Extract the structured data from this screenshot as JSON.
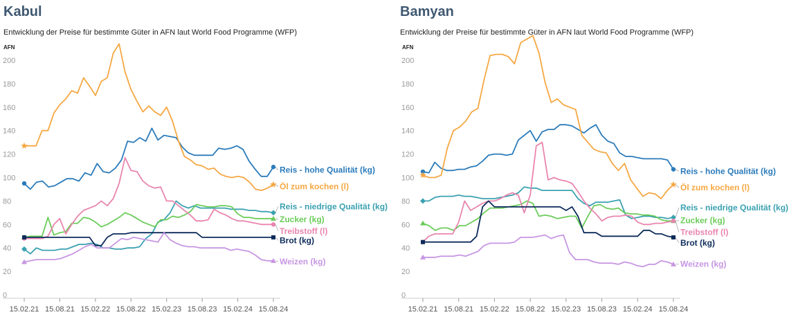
{
  "chart_data": [
    {
      "type": "line",
      "title": "Kabul",
      "subtitle": "Entwicklung der Preise für bestimmte Güter in AFN laut World Food Programme (WFP)",
      "ylabel": "AFN",
      "ylim": [
        0,
        210
      ],
      "yticks": [
        0,
        20,
        40,
        60,
        80,
        100,
        120,
        140,
        160,
        180,
        200
      ],
      "xlim": [
        0,
        42
      ],
      "xticks": [
        {
          "x": 0,
          "label": "15.02.21"
        },
        {
          "x": 6,
          "label": "15.08.21"
        },
        {
          "x": 12,
          "label": "15.02.22"
        },
        {
          "x": 18,
          "label": "15.08.22"
        },
        {
          "x": 24,
          "label": "15.02.23"
        },
        {
          "x": 30,
          "label": "15.08.23"
        },
        {
          "x": 36,
          "label": "15.02.24"
        },
        {
          "x": 42,
          "label": "15.08.24"
        }
      ],
      "grid": "none",
      "series": [
        {
          "name": "Reis - hohe Qualität (kg)",
          "color": "#2b7bba",
          "marker": "circle",
          "label_y": 104,
          "values": [
            95,
            90,
            96,
            97,
            92,
            93,
            96,
            99,
            99,
            97,
            104,
            102,
            112,
            105,
            104,
            108,
            115,
            131,
            130,
            134,
            131,
            142,
            132,
            136,
            135,
            134,
            126,
            121,
            119,
            119,
            119,
            119,
            125,
            124,
            125,
            127,
            124,
            114,
            107,
            101,
            101,
            109
          ]
        },
        {
          "name": "Öl zum kochen (l)",
          "color": "#f5a742",
          "marker": "star",
          "label_y": 90,
          "values": [
            127,
            127,
            127,
            140,
            140,
            155,
            162,
            167,
            174,
            172,
            185,
            178,
            170,
            182,
            185,
            206,
            214,
            190,
            175,
            165,
            156,
            161,
            156,
            153,
            160,
            148,
            131,
            118,
            115,
            111,
            110,
            107,
            108,
            103,
            101,
            100,
            101,
            100,
            96,
            90,
            89,
            91,
            94
          ]
        },
        {
          "name": "Reis - niedrige Qualität (kg)",
          "color": "#3aa1b1",
          "marker": "diamond",
          "label_y": 73,
          "values": [
            39,
            35,
            40,
            38,
            38,
            38,
            39,
            39,
            41,
            43,
            43,
            44,
            43,
            40,
            40,
            39,
            39,
            40,
            40,
            41,
            48,
            52,
            62,
            64,
            70,
            80,
            76,
            74,
            76,
            74,
            74,
            74,
            74,
            74,
            73,
            73,
            73,
            72,
            72,
            71,
            71,
            70
          ]
        },
        {
          "name": "Zucker (kg)",
          "color": "#6bcc5a",
          "marker": "triangle",
          "label_y": 62,
          "values": [
            49,
            50,
            50,
            50,
            66,
            51,
            53,
            54,
            61,
            61,
            66,
            65,
            62,
            58,
            60,
            63,
            66,
            70,
            68,
            65,
            62,
            60,
            58,
            64,
            64,
            67,
            66,
            68,
            71,
            77,
            76,
            75,
            75,
            76,
            76,
            75,
            69,
            66,
            66,
            65,
            65,
            65,
            65
          ]
        },
        {
          "name": "Treibstoff (l)",
          "color": "#e985ae",
          "marker": "circle",
          "label_y": 52,
          "values": [
            48,
            48,
            48,
            48,
            50,
            60,
            65,
            52,
            60,
            67,
            72,
            74,
            76,
            80,
            76,
            82,
            95,
            117,
            106,
            105,
            97,
            93,
            91,
            92,
            80,
            80,
            76,
            72,
            68,
            63,
            63,
            64,
            73,
            70,
            68,
            65,
            63,
            63,
            62,
            61,
            60,
            60,
            60
          ]
        },
        {
          "name": "Brot (kg)",
          "color": "#0d2b5a",
          "marker": "square",
          "label_y": 44,
          "values": [
            49,
            49,
            49,
            49,
            49,
            49,
            49,
            49,
            49,
            49,
            49,
            49,
            42,
            42,
            49,
            52,
            52,
            52,
            53,
            53,
            53,
            53,
            53,
            53,
            53,
            53,
            53,
            53,
            53,
            53,
            49,
            49,
            49,
            49,
            49,
            49,
            49,
            49,
            49,
            49,
            49,
            49,
            49
          ]
        },
        {
          "name": "Weizen (kg)",
          "color": "#c796e2",
          "marker": "triangle",
          "label_y": 26,
          "values": [
            28,
            29,
            30,
            30,
            30,
            30,
            31,
            33,
            35,
            38,
            41,
            43,
            40,
            40,
            40,
            44,
            48,
            47,
            49,
            48,
            47,
            46,
            45,
            53,
            47,
            44,
            42,
            41,
            41,
            40,
            40,
            40,
            40,
            40,
            38,
            39,
            38,
            37,
            34,
            30,
            29,
            29
          ]
        }
      ]
    },
    {
      "type": "line",
      "title": "Bamyan",
      "subtitle": "Entwicklung der Preise für bestimmte Güter in AFN laut World Food Programme (WFP)",
      "ylabel": "AFN",
      "ylim": [
        0,
        210
      ],
      "yticks": [
        0,
        20,
        40,
        60,
        80,
        100,
        120,
        140,
        160,
        180,
        200
      ],
      "xlim": [
        0,
        42
      ],
      "xticks": [
        {
          "x": 0,
          "label": "15.02.21"
        },
        {
          "x": 6,
          "label": "15.08.21"
        },
        {
          "x": 12,
          "label": "15.02.22"
        },
        {
          "x": 18,
          "label": "15.08.22"
        },
        {
          "x": 24,
          "label": "15.02.23"
        },
        {
          "x": 30,
          "label": "15.08.23"
        },
        {
          "x": 36,
          "label": "15.02.24"
        },
        {
          "x": 42,
          "label": "15.08.24"
        }
      ],
      "grid": "none",
      "series": [
        {
          "name": "Reis - hohe Qualität (kg)",
          "color": "#2b7bba",
          "marker": "circle",
          "label_y": 103,
          "values": [
            105,
            104,
            113,
            108,
            106,
            106,
            107,
            107,
            109,
            110,
            114,
            119,
            120,
            120,
            119,
            120,
            132,
            136,
            140,
            131,
            139,
            141,
            141,
            145,
            145,
            144,
            141,
            138,
            142,
            145,
            136,
            131,
            129,
            121,
            118,
            118,
            117,
            116,
            116,
            116,
            116,
            115,
            107
          ]
        },
        {
          "name": "Öl zum kochen (l)",
          "color": "#f5a742",
          "marker": "star",
          "label_y": 89,
          "values": [
            102,
            100,
            100,
            102,
            125,
            140,
            143,
            148,
            156,
            159,
            183,
            204,
            205,
            205,
            203,
            197,
            215,
            218,
            221,
            206,
            181,
            164,
            167,
            162,
            160,
            158,
            136,
            130,
            124,
            122,
            121,
            112,
            106,
            112,
            98,
            91,
            84,
            87,
            86,
            82,
            89,
            94
          ]
        },
        {
          "name": "Reis - niedrige Qualität (kg)",
          "color": "#3aa1b1",
          "marker": "diamond",
          "label_y": 72,
          "values": [
            80,
            80,
            83,
            84,
            84,
            84,
            85,
            84,
            84,
            83,
            82,
            82,
            82,
            83,
            84,
            85,
            87,
            92,
            91,
            91,
            89,
            89,
            89,
            89,
            89,
            89,
            82,
            78,
            76,
            79,
            79,
            79,
            80,
            81,
            68,
            65,
            66,
            67,
            67,
            66,
            66,
            65,
            66
          ]
        },
        {
          "name": "Zucker (kg)",
          "color": "#6bcc5a",
          "marker": "triangle",
          "label_y": 61,
          "values": [
            61,
            59,
            55,
            57,
            57,
            55,
            59,
            59,
            62,
            65,
            70,
            74,
            74,
            74,
            75,
            76,
            77,
            80,
            78,
            67,
            68,
            67,
            65,
            66,
            67,
            67,
            57,
            67,
            76,
            77,
            74,
            73,
            74,
            70,
            69,
            69,
            68,
            68,
            67,
            64,
            63,
            63
          ]
        },
        {
          "name": "Treibstoff (l)",
          "color": "#e985ae",
          "marker": "circle",
          "label_y": 51,
          "values": [
            45,
            50,
            52,
            52,
            52,
            52,
            62,
            80,
            72,
            75,
            78,
            80,
            80,
            82,
            85,
            87,
            85,
            70,
            85,
            127,
            130,
            98,
            100,
            98,
            97,
            95,
            88,
            80,
            74,
            69,
            63,
            66,
            67,
            67,
            68,
            67,
            62,
            60,
            60,
            61,
            61,
            62,
            63
          ]
        },
        {
          "name": "Brot (kg)",
          "color": "#0d2b5a",
          "marker": "square",
          "label_y": 42,
          "values": [
            45,
            45,
            45,
            45,
            45,
            45,
            45,
            45,
            45,
            50,
            75,
            80,
            75,
            75,
            75,
            75,
            75,
            75,
            75,
            75,
            75,
            75,
            75,
            75,
            72,
            75,
            67,
            53,
            53,
            53,
            50,
            50,
            50,
            50,
            50,
            50,
            50,
            55,
            55,
            52,
            52,
            50,
            49
          ]
        },
        {
          "name": "Weizen (kg)",
          "color": "#c796e2",
          "marker": "triangle",
          "label_y": 24,
          "values": [
            32,
            32,
            32,
            33,
            33,
            33,
            34,
            33,
            35,
            37,
            42,
            44,
            44,
            44,
            44,
            45,
            49,
            49,
            49,
            50,
            51,
            48,
            50,
            51,
            36,
            30,
            30,
            30,
            28,
            27,
            27,
            27,
            26,
            28,
            27,
            25,
            24,
            26,
            26,
            29,
            28,
            26
          ]
        }
      ]
    }
  ]
}
